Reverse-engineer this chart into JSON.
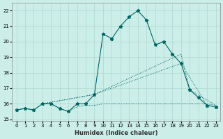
{
  "xlabel": "Humidex (Indice chaleur)",
  "background_color": "#cceee8",
  "grid_color": "#aad8d0",
  "line_color": "#006666",
  "xlim": [
    -0.5,
    23.5
  ],
  "ylim": [
    14.9,
    22.5
  ],
  "yticks": [
    15,
    16,
    17,
    18,
    19,
    20,
    21,
    22
  ],
  "xticks": [
    0,
    1,
    2,
    3,
    4,
    5,
    6,
    7,
    8,
    9,
    10,
    11,
    12,
    13,
    14,
    15,
    16,
    17,
    18,
    19,
    20,
    21,
    22,
    23
  ],
  "series1_x": [
    0,
    1,
    2,
    3,
    4,
    5,
    6,
    7,
    8,
    9,
    10,
    11,
    12,
    13,
    14,
    15,
    16,
    17,
    18,
    19,
    20,
    21,
    22,
    23
  ],
  "series1_y": [
    15.6,
    15.7,
    15.6,
    16.0,
    16.0,
    15.7,
    15.5,
    16.0,
    16.0,
    16.6,
    20.5,
    20.2,
    21.0,
    21.6,
    22.0,
    21.4,
    19.8,
    20.0,
    19.2,
    18.6,
    16.9,
    16.4,
    15.9,
    15.8
  ],
  "series2_x": [
    0,
    1,
    2,
    3,
    4,
    5,
    6,
    7,
    8,
    9,
    10,
    11,
    12,
    13,
    14,
    15,
    16,
    17,
    18,
    19,
    20,
    21,
    22,
    23
  ],
  "series2_y": [
    15.6,
    15.7,
    15.6,
    16.0,
    16.0,
    15.7,
    15.5,
    15.8,
    15.9,
    15.9,
    16.0,
    16.0,
    16.0,
    16.0,
    16.0,
    16.0,
    16.0,
    16.0,
    16.0,
    16.0,
    16.0,
    16.0,
    16.0,
    15.9
  ],
  "series3_x": [
    3,
    9,
    19,
    22,
    23
  ],
  "series3_y": [
    16.0,
    16.6,
    18.6,
    15.9,
    15.8
  ],
  "series4_x": [
    3,
    9,
    19,
    20,
    23
  ],
  "series4_y": [
    16.0,
    16.6,
    19.2,
    16.9,
    15.9
  ]
}
